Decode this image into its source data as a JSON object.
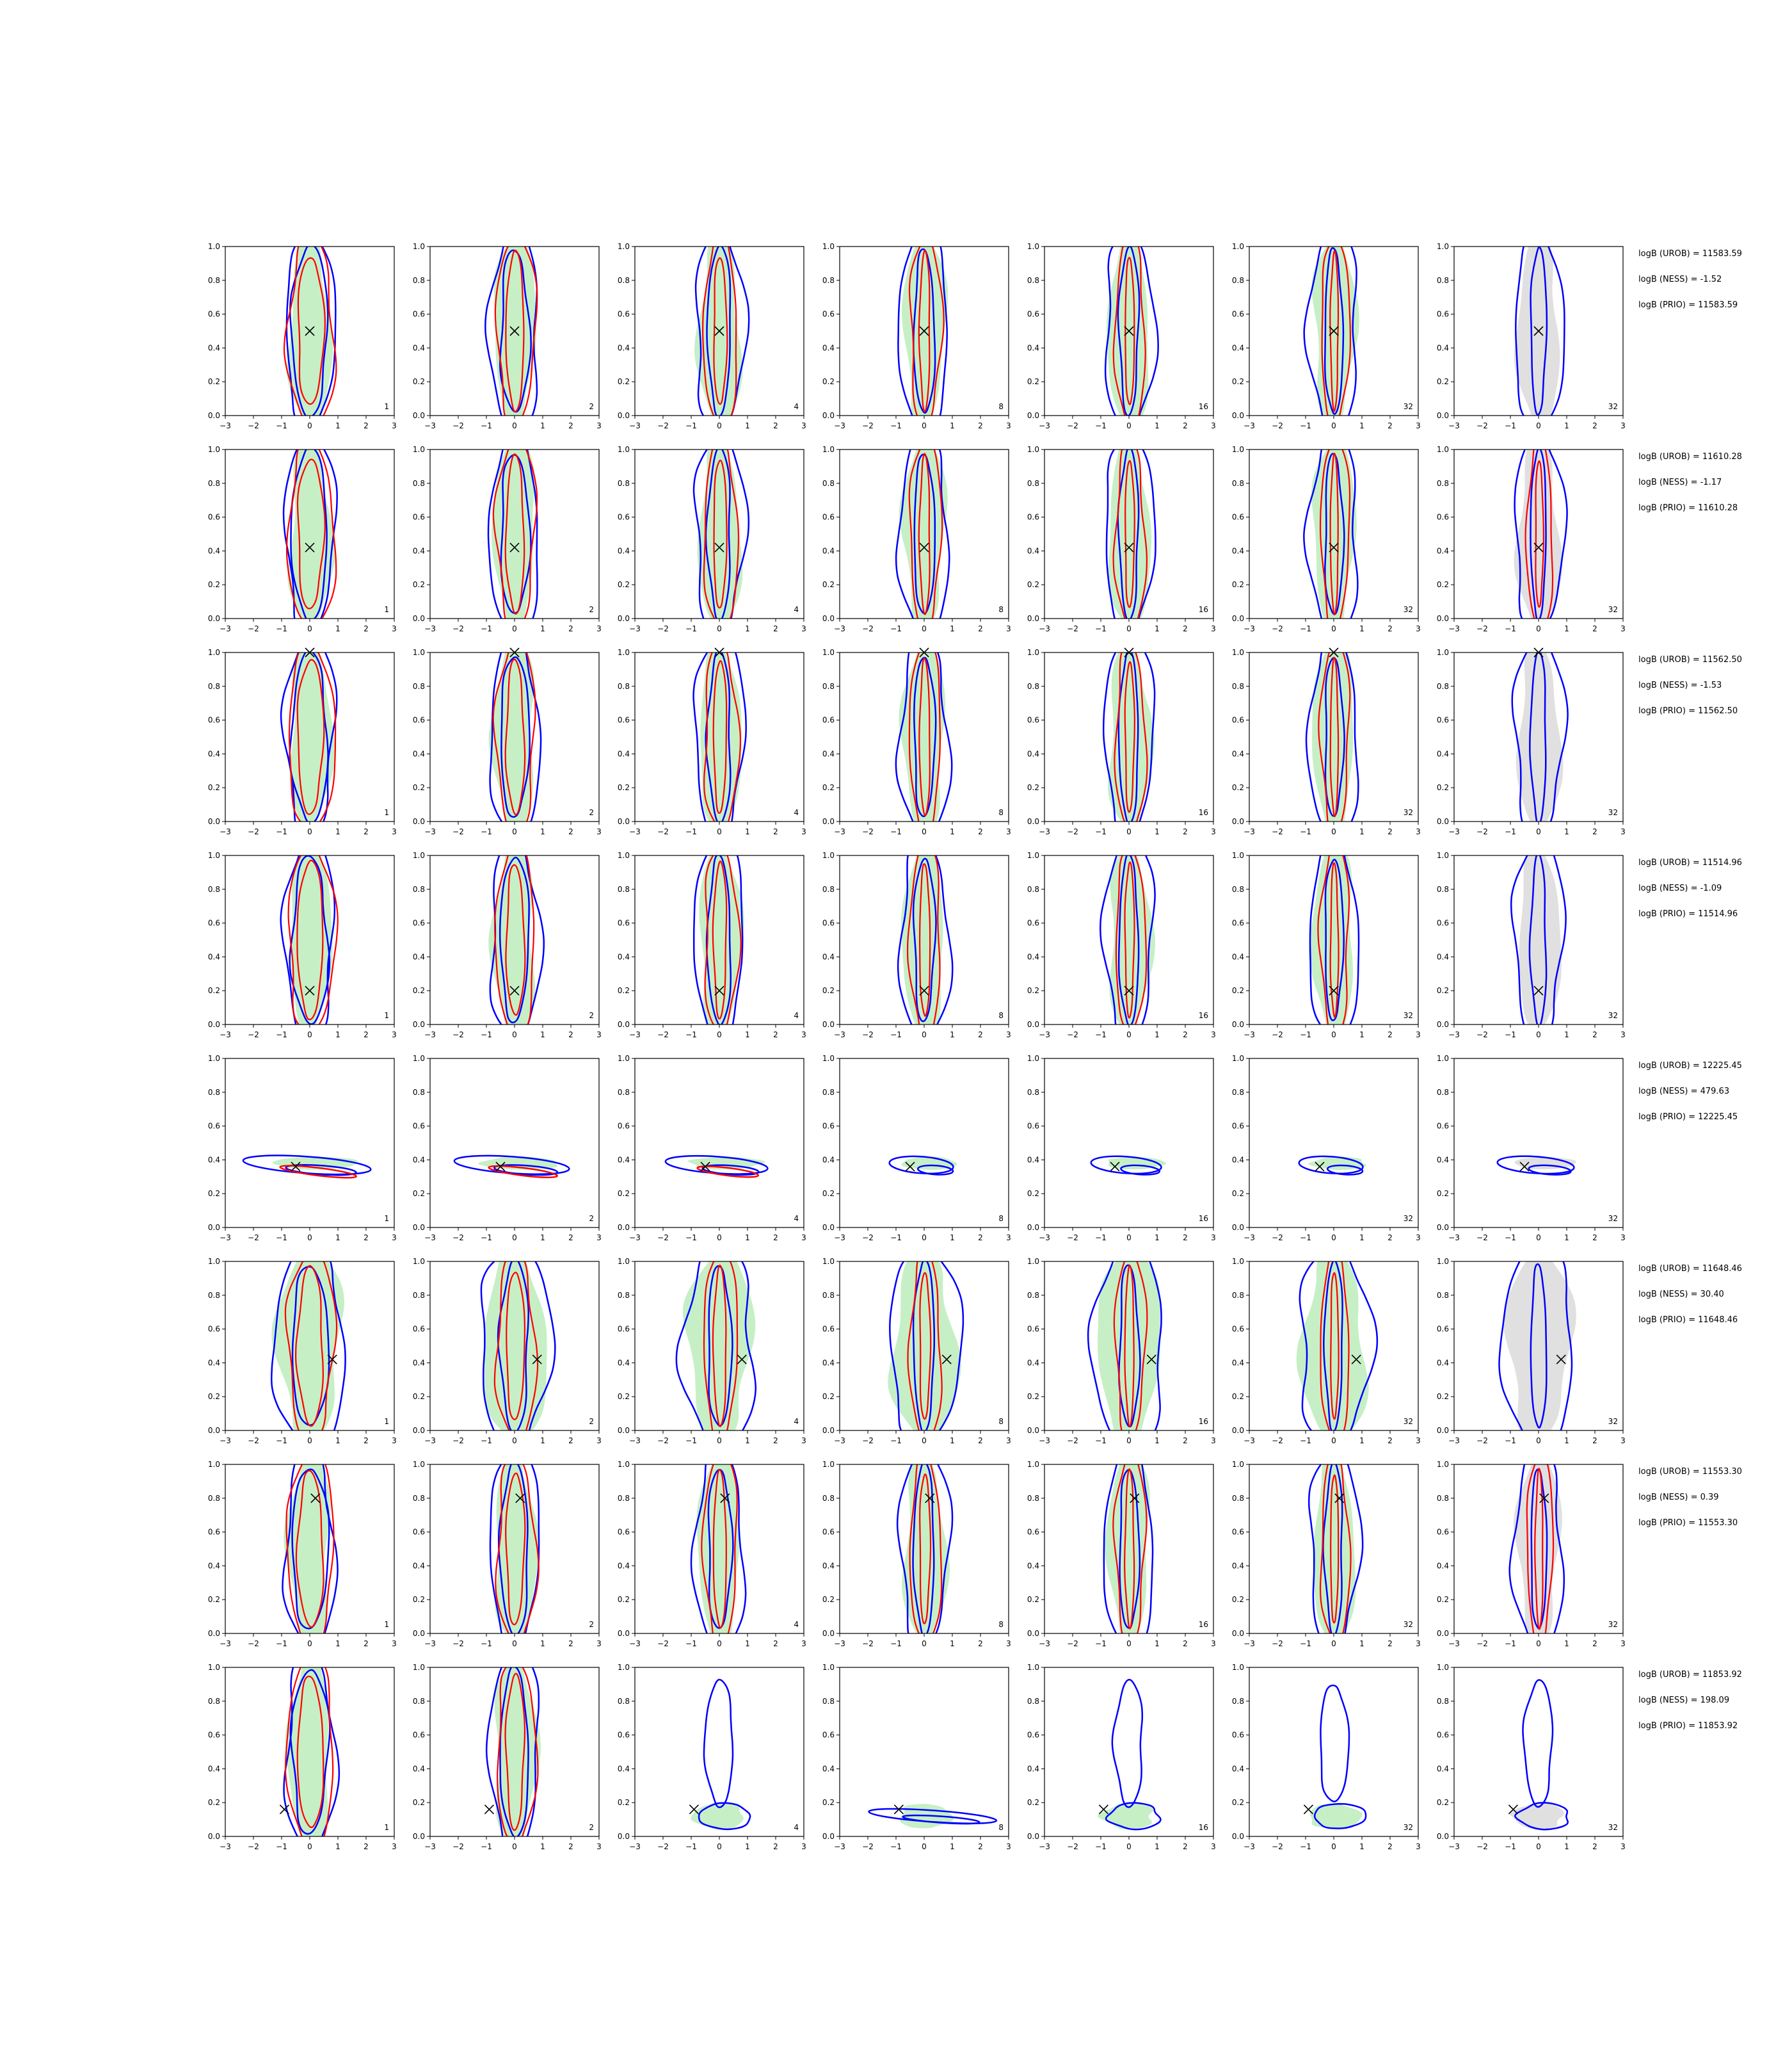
{
  "chart_data": {
    "type": "contour-grid",
    "xlim": [
      -3,
      3
    ],
    "ylim": [
      0,
      1
    ],
    "x_ticks": [
      -3,
      -2,
      -1,
      0,
      1,
      2,
      3
    ],
    "y_ticks": [
      "0.0",
      "0.2",
      "0.4",
      "0.6",
      "0.8",
      "1.0"
    ],
    "grid": false,
    "colors": {
      "prior_fill": "#c6efc6",
      "ref_fill": "#e0e0e0",
      "nest_line": "#0000ff",
      "rej_line": "#ff0000",
      "marker": "#000000"
    },
    "column_labels": [
      "1",
      "2",
      "4",
      "8",
      "16",
      "32",
      "32"
    ],
    "rows": [
      {
        "marker": [
          0.0,
          0.5
        ],
        "shape": "vertical",
        "text": [
          "logB (UROB) = 11583.59",
          "logB (NESS) = -1.52",
          "logB (PRIO) = 11583.59"
        ]
      },
      {
        "marker": [
          0.0,
          0.42
        ],
        "shape": "vertical",
        "text": [
          "logB (UROB) = 11610.28",
          "logB (NESS) = -1.17",
          "logB (PRIO) = 11610.28"
        ]
      },
      {
        "marker": [
          0.0,
          1.0
        ],
        "shape": "vertical",
        "text": [
          "logB (UROB) = 11562.50",
          "logB (NESS) = -1.53",
          "logB (PRIO) = 11562.50"
        ]
      },
      {
        "marker": [
          0.0,
          0.2
        ],
        "shape": "vertical",
        "text": [
          "logB (UROB) = 11514.96",
          "logB (NESS) = -1.09",
          "logB (PRIO) = 11514.96"
        ]
      },
      {
        "marker": [
          -0.5,
          0.36
        ],
        "shape": "horizontal",
        "text": [
          "logB (UROB) = 12225.45",
          "logB (NESS) = 479.63",
          "logB (PRIO) = 12225.45"
        ]
      },
      {
        "marker": [
          0.8,
          0.42
        ],
        "shape": "cross",
        "text": [
          "logB (UROB) = 11648.46",
          "logB (NESS) = 30.40",
          "logB (PRIO) = 11648.46"
        ]
      },
      {
        "marker": [
          0.2,
          0.8
        ],
        "shape": "top",
        "text": [
          "logB (UROB) = 11553.30",
          "logB (NESS) = 0.39",
          "logB (PRIO) = 11553.30"
        ]
      },
      {
        "marker": [
          -0.9,
          0.16
        ],
        "shape": "bottom",
        "text": [
          "logB (UROB) = 11853.92",
          "logB (NESS) = 198.09",
          "logB (PRIO) = 11853.92"
        ]
      }
    ]
  }
}
